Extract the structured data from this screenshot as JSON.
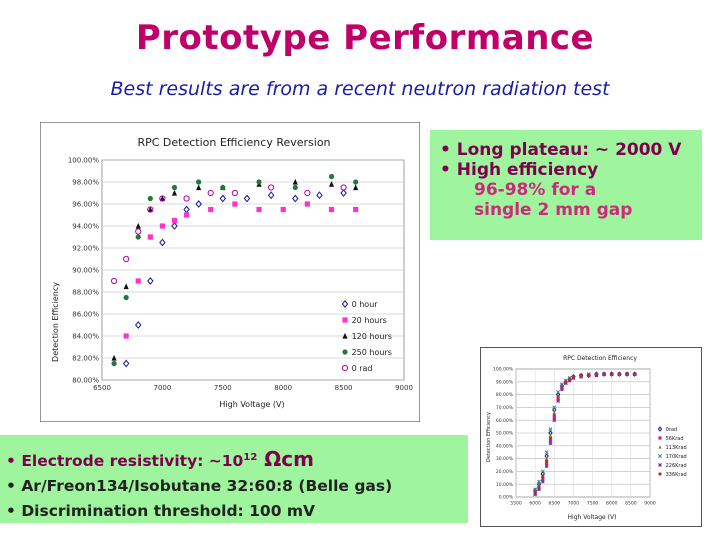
{
  "slide": {
    "title": "Prototype Performance",
    "subtitle": "Best results are from a recent neutron radiation test"
  },
  "bullets_right": [
    "Long plateau: ~ 2000 V",
    "High efficiency",
    "96-98% for a",
    "single 2 mm gap"
  ],
  "bullets_left": {
    "resistivity_prefix": "Electrode resistivity: ~10",
    "resistivity_exp": "12",
    "resistivity_unit": " Ωcm",
    "gas": "Ar/Freon134/Isobutane 32:60:8 (Belle gas)",
    "threshold": "Discrimination threshold: 100 mV"
  },
  "colors": {
    "title": "#c0006a",
    "subtitle": "#1a1aa8",
    "box_fill": "#9ef59e",
    "series_0h": "#1a1aa8",
    "series_20h": "#ff33cc",
    "series_120h": "#111111",
    "series_250h": "#1f7a3a",
    "series_0rad": "#b000b0"
  },
  "chart_data": [
    {
      "type": "scatter",
      "title": "RPC Detection Efficiency Reversion",
      "xlabel": "High Voltage (V)",
      "ylabel": "Detection Efficiency",
      "xlim": [
        6500,
        9000
      ],
      "ylim": [
        80,
        100
      ],
      "xticks": [
        "6500",
        "7000",
        "7500",
        "8000",
        "8500",
        "9000"
      ],
      "yticks": [
        "80.00%",
        "82.00%",
        "84.00%",
        "86.00%",
        "88.00%",
        "90.00%",
        "92.00%",
        "94.00%",
        "96.00%",
        "98.00%",
        "100.00%"
      ],
      "grid": true,
      "legend": "bottom-right",
      "series": [
        {
          "name": "0 hour",
          "marker": "diamond-open",
          "x": [
            6700,
            6800,
            6900,
            7000,
            7100,
            7200,
            7300,
            7500,
            7700,
            7900,
            8100,
            8300,
            8500
          ],
          "y": [
            81.5,
            85.0,
            89.0,
            92.5,
            94.0,
            95.5,
            96.0,
            96.5,
            96.5,
            96.8,
            96.5,
            96.8,
            97.0
          ]
        },
        {
          "name": "20 hours",
          "marker": "square",
          "x": [
            6700,
            6800,
            6900,
            7000,
            7100,
            7200,
            7400,
            7600,
            7800,
            8000,
            8200,
            8400,
            8600
          ],
          "y": [
            84.0,
            89.0,
            93.0,
            94.0,
            94.5,
            95.0,
            95.5,
            96.0,
            95.5,
            95.5,
            96.0,
            95.5,
            95.5
          ]
        },
        {
          "name": "120 hours",
          "marker": "triangle",
          "x": [
            6600,
            6700,
            6800,
            6900,
            7000,
            7100,
            7300,
            7500,
            7800,
            8100,
            8400,
            8600
          ],
          "y": [
            82.0,
            88.5,
            94.0,
            95.5,
            96.5,
            97.0,
            97.5,
            97.5,
            97.8,
            98.0,
            97.8,
            97.5
          ]
        },
        {
          "name": "250 hours",
          "marker": "circle",
          "x": [
            6600,
            6700,
            6800,
            6900,
            7100,
            7300,
            7500,
            7800,
            8100,
            8400,
            8600
          ],
          "y": [
            81.5,
            87.5,
            93.0,
            96.5,
            97.5,
            98.0,
            97.5,
            98.0,
            97.5,
            98.5,
            98.0
          ]
        },
        {
          "name": "0 rad",
          "marker": "circle-open",
          "x": [
            6600,
            6700,
            6800,
            6900,
            7000,
            7200,
            7400,
            7600,
            7900,
            8200,
            8500
          ],
          "y": [
            89.0,
            91.0,
            93.5,
            95.5,
            96.5,
            96.5,
            97.0,
            97.0,
            97.5,
            97.0,
            97.5
          ]
        }
      ]
    },
    {
      "type": "scatter",
      "title": "RPC Detection Efficiency",
      "xlabel": "High Voltage (V)",
      "ylabel": "Detection Efficiency",
      "xlim": [
        5500,
        9000
      ],
      "ylim": [
        0,
        100
      ],
      "xticks": [
        "5500",
        "6000",
        "6500",
        "7000",
        "7500",
        "8000",
        "8500",
        "9000"
      ],
      "yticks": [
        "0.00%",
        "10.00%",
        "20.00%",
        "30.00%",
        "40.00%",
        "50.00%",
        "60.00%",
        "70.00%",
        "80.00%",
        "90.00%",
        "100.00%"
      ],
      "grid": true,
      "legend": "right",
      "series": [
        {
          "name": "0rad",
          "marker": "diamond-open",
          "x": [
            6000,
            6100,
            6200,
            6300,
            6400,
            6500,
            6600,
            6700,
            6800,
            6900,
            7000,
            7200,
            7400,
            7600,
            7800,
            8000,
            8200,
            8400,
            8600
          ],
          "y": [
            5,
            10,
            18,
            32,
            50,
            68,
            80,
            87,
            90,
            92,
            94,
            95,
            95,
            96,
            96,
            96,
            96,
            96,
            96
          ]
        },
        {
          "name": "56Krad",
          "marker": "square",
          "x": [
            6000,
            6100,
            6200,
            6300,
            6400,
            6500,
            6600,
            6700,
            6800,
            6900,
            7000,
            7200,
            7400,
            7600,
            7800,
            8000,
            8200,
            8400,
            8600
          ],
          "y": [
            3,
            7,
            14,
            26,
            44,
            62,
            76,
            85,
            89,
            91,
            93,
            94,
            95,
            95,
            96,
            96,
            96,
            96,
            96
          ]
        },
        {
          "name": "113Krad",
          "marker": "triangle",
          "x": [
            6000,
            6100,
            6200,
            6300,
            6400,
            6500,
            6600,
            6700,
            6800,
            6900,
            7000,
            7200,
            7400,
            7600,
            7800,
            8000,
            8200,
            8400,
            8600
          ],
          "y": [
            4,
            9,
            17,
            30,
            48,
            66,
            79,
            86,
            90,
            92,
            94,
            95,
            95,
            96,
            96,
            96,
            96,
            96,
            96
          ]
        },
        {
          "name": "170Krad",
          "marker": "cross",
          "x": [
            6000,
            6100,
            6200,
            6300,
            6400,
            6500,
            6600,
            6700,
            6800,
            6900,
            7000,
            7200,
            7400,
            7600,
            7800,
            8000,
            8200,
            8400,
            8600
          ],
          "y": [
            6,
            12,
            20,
            35,
            53,
            70,
            82,
            88,
            91,
            93,
            94,
            95,
            96,
            96,
            96,
            96,
            96,
            96,
            96
          ]
        },
        {
          "name": "226Krad",
          "marker": "star",
          "x": [
            6000,
            6100,
            6200,
            6300,
            6400,
            6500,
            6600,
            6700,
            6800,
            6900,
            7000,
            7200,
            7400,
            7600,
            7800,
            8000,
            8200,
            8400,
            8600
          ],
          "y": [
            2,
            6,
            12,
            24,
            42,
            60,
            75,
            84,
            89,
            91,
            93,
            94,
            95,
            95,
            96,
            96,
            96,
            96,
            96
          ]
        },
        {
          "name": "336Krad",
          "marker": "circle",
          "x": [
            6000,
            6100,
            6200,
            6300,
            6400,
            6500,
            6600,
            6700,
            6800,
            6900,
            7000,
            7200,
            7400,
            7600,
            7800,
            8000,
            8200,
            8400,
            8600
          ],
          "y": [
            4,
            8,
            16,
            28,
            46,
            64,
            78,
            86,
            90,
            92,
            94,
            95,
            95,
            96,
            96,
            96,
            96,
            96,
            96
          ]
        }
      ]
    }
  ]
}
